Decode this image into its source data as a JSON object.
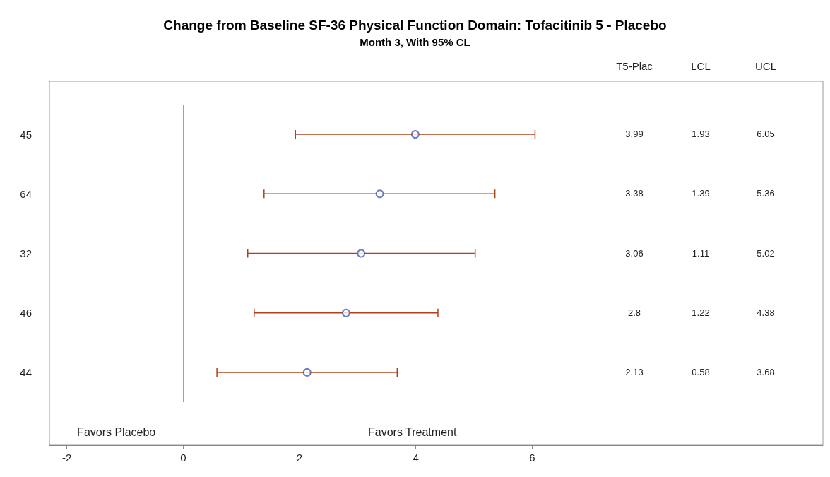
{
  "chart_data": {
    "type": "scatter",
    "title": "Change from Baseline SF-36 Physical Function Domain: Tofacitinib 5 - Placebo",
    "subtitle": "Month 3, With 95% CL",
    "orientation": "horizontal",
    "categories": [
      "45",
      "64",
      "32",
      "46",
      "44"
    ],
    "series": [
      {
        "color": "#4a5bb0",
        "values": [
          3.99,
          3.38,
          3.06,
          2.8,
          2.13
        ],
        "errors": [
          [
            1.93,
            6.05
          ],
          [
            1.39,
            5.36
          ],
          [
            1.11,
            5.02
          ],
          [
            1.22,
            4.38
          ],
          [
            0.58,
            3.68
          ]
        ]
      }
    ],
    "xlim": [
      -2.3,
      11
    ],
    "xticks": [
      -2,
      0,
      2,
      4,
      6
    ],
    "ref_lines": [
      {
        "axis": "x",
        "value": 0,
        "color": "#a0a0a0"
      }
    ],
    "marker": "circle",
    "grid": false,
    "annotations": [
      "T5-Plac",
      "LCL",
      "UCL",
      "3.99",
      "1.93",
      "6.05",
      "3.38",
      "1.39",
      "5.36",
      "3.06",
      "1.11",
      "5.02",
      "2.8",
      "1.22",
      "4.38",
      "2.13",
      "0.58",
      "3.68",
      "Favors Placebo",
      "Favors Treatment"
    ]
  }
}
